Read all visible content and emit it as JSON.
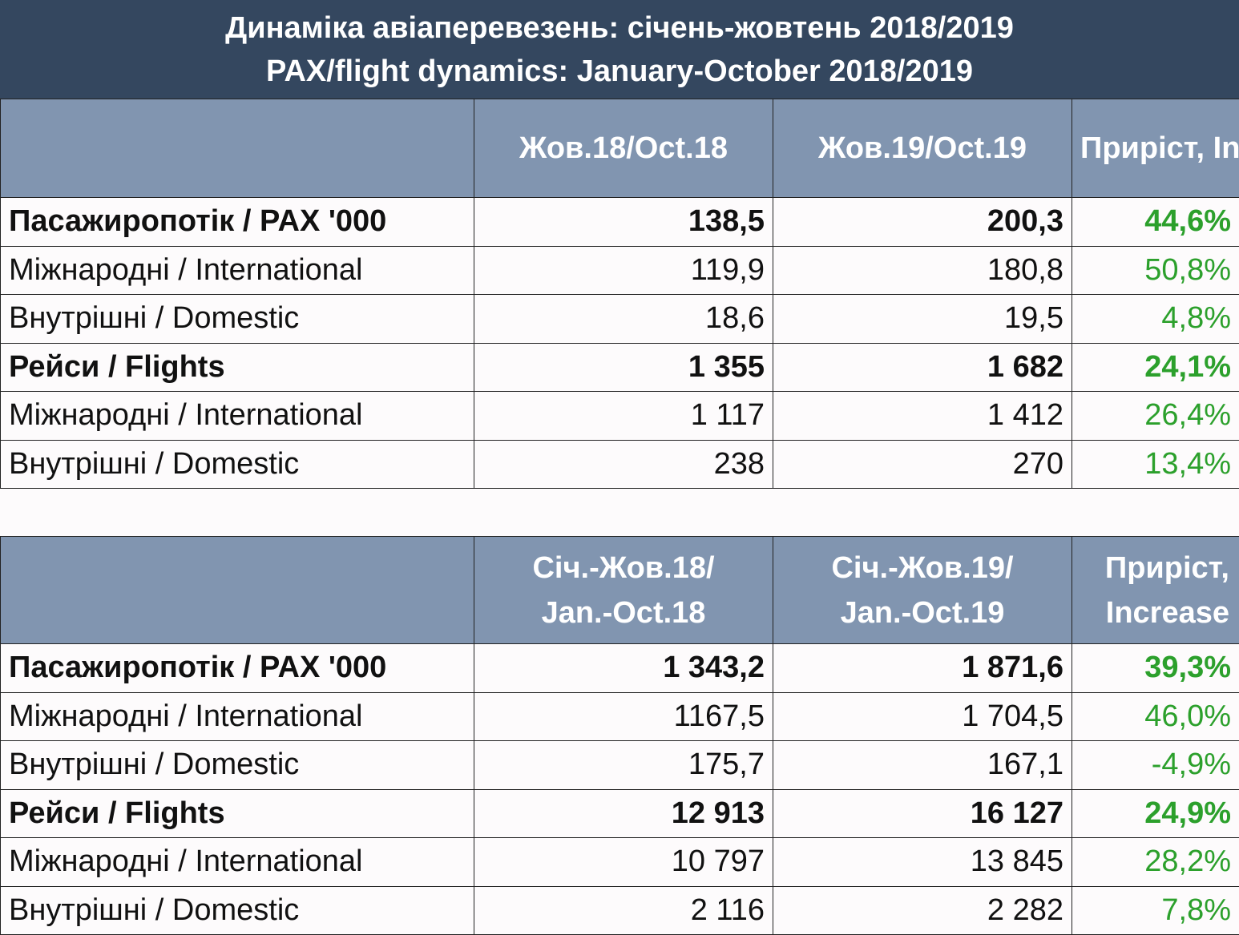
{
  "title": {
    "line1": "Динаміка авіаперевезень: січень-жовтень 2018/2019",
    "line2": "PAX/flight dynamics: January-October 2018/2019"
  },
  "colors": {
    "title_bg": "#34475f",
    "header_bg": "#8195b0",
    "increase_text": "#2ca02c"
  },
  "chart_data": [
    {
      "type": "table",
      "title": "Динаміка авіаперевезень: січень-жовтень 2018/2019 / PAX/flight dynamics: January-October 2018/2019",
      "columns": [
        "",
        "Жов.18/Oct.18",
        "Жов.19/Oct.19",
        "Приріст, Increase"
      ],
      "rows": [
        {
          "label": "Пасажиропотік / PAX '000",
          "v18": "138,5",
          "v19": "200,3",
          "inc": "44,6%",
          "bold": true
        },
        {
          "label": "Міжнародні / International",
          "v18": "119,9",
          "v19": "180,8",
          "inc": "50,8%",
          "bold": false
        },
        {
          "label": "Внутрішні / Domestic",
          "v18": "18,6",
          "v19": "19,5",
          "inc": "4,8%",
          "bold": false
        },
        {
          "label": "Рейси / Flights",
          "v18": "1 355",
          "v19": "1 682",
          "inc": "24,1%",
          "bold": true
        },
        {
          "label": "Міжнародні / International",
          "v18": "1 117",
          "v19": "1 412",
          "inc": "26,4%",
          "bold": false
        },
        {
          "label": "Внутрішні / Domestic",
          "v18": "238",
          "v19": "270",
          "inc": "13,4%",
          "bold": false
        }
      ]
    },
    {
      "type": "table",
      "columns": [
        "",
        "Січ.-Жов.18/\nJan.-Oct.18",
        "Січ.-Жов.19/\nJan.-Oct.19",
        "Приріст,\nIncrease"
      ],
      "rows": [
        {
          "label": "Пасажиропотік / PAX '000",
          "v18": "1 343,2",
          "v19": "1 871,6",
          "inc": "39,3%",
          "bold": true
        },
        {
          "label": "Міжнародні / International",
          "v18": "1167,5",
          "v19": "1 704,5",
          "inc": "46,0%",
          "bold": false
        },
        {
          "label": "Внутрішні / Domestic",
          "v18": "175,7",
          "v19": "167,1",
          "inc": "-4,9%",
          "bold": false
        },
        {
          "label": "Рейси / Flights",
          "v18": "12 913",
          "v19": "16 127",
          "inc": "24,9%",
          "bold": true
        },
        {
          "label": "Міжнародні / International",
          "v18": "10 797",
          "v19": "13 845",
          "inc": "28,2%",
          "bold": false
        },
        {
          "label": "Внутрішні / Domestic",
          "v18": "2 116",
          "v19": "2 282",
          "inc": "7,8%",
          "bold": false
        }
      ]
    }
  ]
}
